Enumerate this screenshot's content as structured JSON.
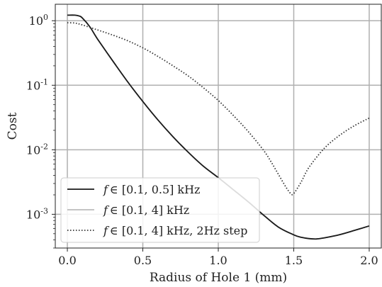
{
  "chart_data": {
    "type": "line",
    "title": "",
    "xlabel": "Radius of Hole 1 (mm)",
    "ylabel": "Cost",
    "xlim": [
      -0.08,
      2.08
    ],
    "ylim": [
      0.0003,
      1.8
    ],
    "yscale": "log",
    "grid": true,
    "legend_position": "lower-left",
    "x_ticks": [
      {
        "value": 0.0,
        "label": "0.0"
      },
      {
        "value": 0.5,
        "label": "0.5"
      },
      {
        "value": 1.0,
        "label": "1.0"
      },
      {
        "value": 1.5,
        "label": "1.5"
      },
      {
        "value": 2.0,
        "label": "2.0"
      }
    ],
    "y_ticks": [
      {
        "value": 1,
        "base": "10",
        "exp": "0"
      },
      {
        "value": 0.1,
        "base": "10",
        "exp": "-1"
      },
      {
        "value": 0.01,
        "base": "10",
        "exp": "-2"
      },
      {
        "value": 0.001,
        "base": "10",
        "exp": "-3"
      }
    ],
    "series": [
      {
        "name_prefix": "f",
        "name_math": "∈ [0.1, 0.5]",
        "name_suffix": "kHz",
        "color": "#1a1a1a",
        "dash": "solid",
        "x": [
          0.0,
          0.05,
          0.08,
          0.1,
          0.15,
          0.2,
          0.3,
          0.4,
          0.5,
          0.6,
          0.7,
          0.8,
          0.9,
          1.0,
          1.1,
          1.2,
          1.3,
          1.4,
          1.5,
          1.55,
          1.6,
          1.65,
          1.7,
          1.8,
          1.9,
          2.0
        ],
        "y": [
          1.22,
          1.22,
          1.18,
          1.1,
          0.8,
          0.52,
          0.24,
          0.113,
          0.056,
          0.029,
          0.0159,
          0.0092,
          0.0056,
          0.0037,
          0.0024,
          0.00155,
          0.00097,
          0.00063,
          0.00048,
          0.00044,
          0.00042,
          0.000415,
          0.00043,
          0.00048,
          0.00056,
          0.00066
        ]
      },
      {
        "name_prefix": "f",
        "name_math": "∈ [0.1, 4]",
        "name_suffix": "kHz",
        "color": "#bbbbbb",
        "dash": "solid",
        "x": [
          0.0,
          0.05,
          0.08,
          0.1,
          0.15,
          0.2,
          0.3,
          0.4,
          0.5,
          0.6,
          0.7,
          0.8,
          0.9,
          1.0,
          1.1,
          1.2,
          1.3,
          1.4,
          1.5,
          1.55,
          1.6,
          1.65,
          1.7,
          1.8,
          1.9,
          2.0
        ],
        "y": [
          1.22,
          1.22,
          1.18,
          1.1,
          0.8,
          0.52,
          0.24,
          0.113,
          0.056,
          0.029,
          0.0159,
          0.0092,
          0.0056,
          0.0037,
          0.0024,
          0.00155,
          0.00097,
          0.00063,
          0.00048,
          0.00044,
          0.00042,
          0.000415,
          0.00043,
          0.00048,
          0.00056,
          0.00066
        ]
      },
      {
        "name_prefix": "f",
        "name_math": "∈ [0.1, 4]",
        "name_suffix": "kHz, 2Hz step",
        "color": "#333333",
        "dash": "dotted",
        "x": [
          0.0,
          0.05,
          0.1,
          0.2,
          0.3,
          0.4,
          0.5,
          0.6,
          0.7,
          0.8,
          0.9,
          1.0,
          1.1,
          1.2,
          1.3,
          1.35,
          1.4,
          1.45,
          1.48,
          1.5,
          1.55,
          1.6,
          1.7,
          1.8,
          1.9,
          2.0
        ],
        "y": [
          0.93,
          0.92,
          0.86,
          0.72,
          0.6,
          0.49,
          0.38,
          0.28,
          0.2,
          0.14,
          0.092,
          0.058,
          0.034,
          0.019,
          0.0098,
          0.0065,
          0.0041,
          0.0026,
          0.0021,
          0.0021,
          0.0032,
          0.0053,
          0.0104,
          0.0165,
          0.0235,
          0.031
        ]
      }
    ]
  }
}
